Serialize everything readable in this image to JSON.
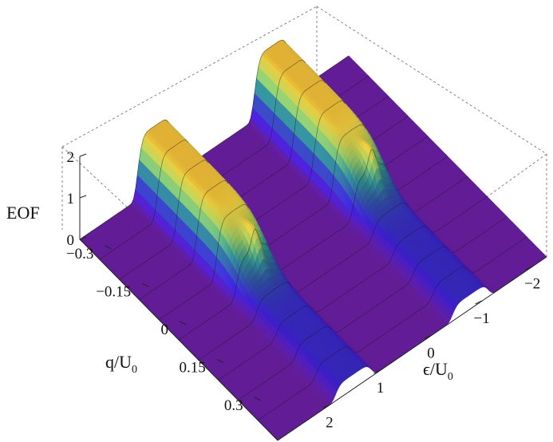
{
  "chart_data": {
    "type": "surface",
    "zlabel": "EOF",
    "xlabel": "q/U",
    "xlabel_sub": "0",
    "ylabel": "ϵ/U",
    "ylabel_sub": "0",
    "z_ticks": [
      "0",
      "1",
      "2"
    ],
    "q_ticks": [
      "−0.3",
      "−0.15",
      "0",
      "0.15",
      "0.3"
    ],
    "eps_ticks": [
      "−2",
      "−1",
      "0",
      "1",
      "2"
    ],
    "zlim": [
      0,
      2
    ],
    "qlim": [
      -0.35,
      0.35
    ],
    "epslim": [
      -2.3,
      2.3
    ],
    "ridges": [
      {
        "eps": -1,
        "height_q_negative": 1.5,
        "height_q_positive": 0.35,
        "cliff_q": 0.0,
        "peak_height": 2.0
      },
      {
        "eps": 1,
        "height_q_negative": 1.5,
        "height_q_positive": 0.35,
        "cliff_q": 0.0,
        "peak_height": 2.0
      }
    ],
    "colormap": [
      "#6a1fa3",
      "#3c1fd0",
      "#2f4fa0",
      "#2f8a8a",
      "#8fc060",
      "#f0d040",
      "#ff9020",
      "#ff3010"
    ],
    "contour_lines": true,
    "grid": false
  }
}
